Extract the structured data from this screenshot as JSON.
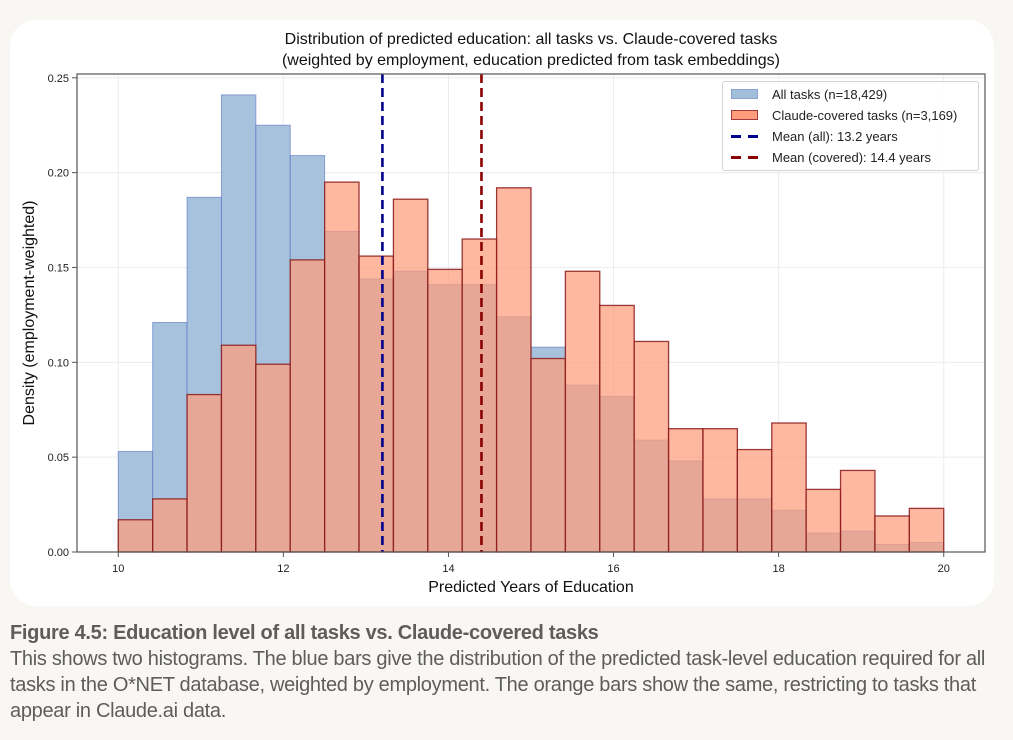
{
  "chart_data": {
    "type": "bar",
    "subtype": "overlaid-histogram",
    "title": "Distribution of predicted education: all tasks vs. Claude-covered tasks",
    "subtitle": "(weighted by employment, education predicted from task embeddings)",
    "xlabel": "Predicted Years of Education",
    "ylabel": "Density (employment-weighted)",
    "xlim": [
      9.5,
      20.5
    ],
    "ylim": [
      0,
      0.252
    ],
    "xticks": [
      10,
      12,
      14,
      16,
      18,
      20
    ],
    "xtick_labels": [
      "10",
      "12",
      "14",
      "16",
      "18",
      "20"
    ],
    "yticks": [
      0.0,
      0.05,
      0.1,
      0.15,
      0.2,
      0.25
    ],
    "ytick_labels": [
      "0.00",
      "0.05",
      "0.10",
      "0.15",
      "0.20",
      "0.25"
    ],
    "grid": true,
    "legend_position": "top-right",
    "bin_start": 10,
    "bin_end": 20,
    "bin_count": 24,
    "series": [
      {
        "name": "All tasks (n=18,429)",
        "color": "#a1bfda",
        "edge_color": "#5a6fc4",
        "values": [
          0.053,
          0.121,
          0.187,
          0.241,
          0.225,
          0.209,
          0.169,
          0.144,
          0.148,
          0.141,
          0.141,
          0.124,
          0.108,
          0.088,
          0.082,
          0.059,
          0.048,
          0.028,
          0.028,
          0.022,
          0.01,
          0.011,
          0.004,
          0.005
        ]
      },
      {
        "name": "Claude-covered tasks (n=3,169)",
        "color": "#ff9c7c",
        "edge_color": "#8b1a1a",
        "values": [
          0.017,
          0.028,
          0.083,
          0.109,
          0.099,
          0.154,
          0.195,
          0.156,
          0.186,
          0.149,
          0.165,
          0.192,
          0.102,
          0.148,
          0.13,
          0.111,
          0.065,
          0.065,
          0.054,
          0.068,
          0.033,
          0.043,
          0.019,
          0.023
        ]
      }
    ],
    "reference_lines": [
      {
        "name": "Mean (all): 13.2 years",
        "x": 13.2,
        "color": "#00008b",
        "style": "dashed"
      },
      {
        "name": "Mean (covered): 14.4 years",
        "x": 14.4,
        "color": "#8b0000",
        "style": "dashed"
      }
    ]
  },
  "legend": {
    "items": [
      {
        "label": "All tasks (n=18,429)"
      },
      {
        "label": "Claude-covered tasks (n=3,169)"
      },
      {
        "label": "Mean (all): 13.2 years"
      },
      {
        "label": "Mean (covered): 14.4 years"
      }
    ]
  },
  "caption": {
    "title": "Figure 4.5: Education level of all tasks vs. Claude-covered tasks",
    "body": "This shows two histograms. The blue bars give the distribution of the predicted task-level education required for all tasks in the O*NET database, weighted by employment. The orange bars show the same, restricting to tasks that appear in Claude.ai data."
  }
}
